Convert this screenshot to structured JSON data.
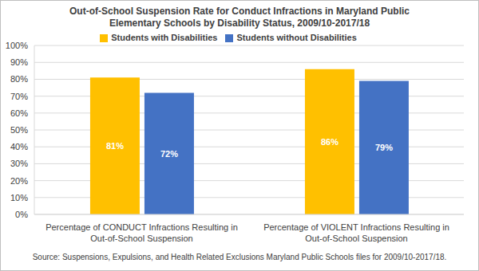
{
  "chart_data": {
    "type": "bar",
    "title": "Out-of-School Suspension Rate for Conduct Infractions in Maryland Public Elementary Schools by Disability Status, 2009/10-2017/18",
    "categories": [
      "Percentage of CONDUCT Infractions Resulting in Out-of-School Suspension",
      "Percentage of VIOLENT Infractions Resulting in Out-of-School Suspension"
    ],
    "series": [
      {
        "name": "Students with Disabilities",
        "color": "#FFC000",
        "values": [
          81,
          86
        ],
        "value_labels": [
          "81%",
          "86%"
        ]
      },
      {
        "name": "Students without Disabilities",
        "color": "#4472C4",
        "values": [
          72,
          79
        ],
        "value_labels": [
          "72%",
          "79%"
        ]
      }
    ],
    "ylim": [
      0,
      100
    ],
    "yticks": [
      {
        "value": 0,
        "label": "0%"
      },
      {
        "value": 10,
        "label": "10%"
      },
      {
        "value": 20,
        "label": "20%"
      },
      {
        "value": 30,
        "label": "30%"
      },
      {
        "value": 40,
        "label": "40%"
      },
      {
        "value": 50,
        "label": "50%"
      },
      {
        "value": 60,
        "label": "60%"
      },
      {
        "value": 70,
        "label": "70%"
      },
      {
        "value": 80,
        "label": "80%"
      },
      {
        "value": 90,
        "label": "90%"
      },
      {
        "value": 100,
        "label": "100%"
      }
    ],
    "grid": true,
    "legend": "top",
    "data_labels": true,
    "annotations": [
      "Source: Suspensions, Expulsions, and Health Related Exclusions Maryland Public Schools files for 2009/10-2017/18."
    ]
  }
}
